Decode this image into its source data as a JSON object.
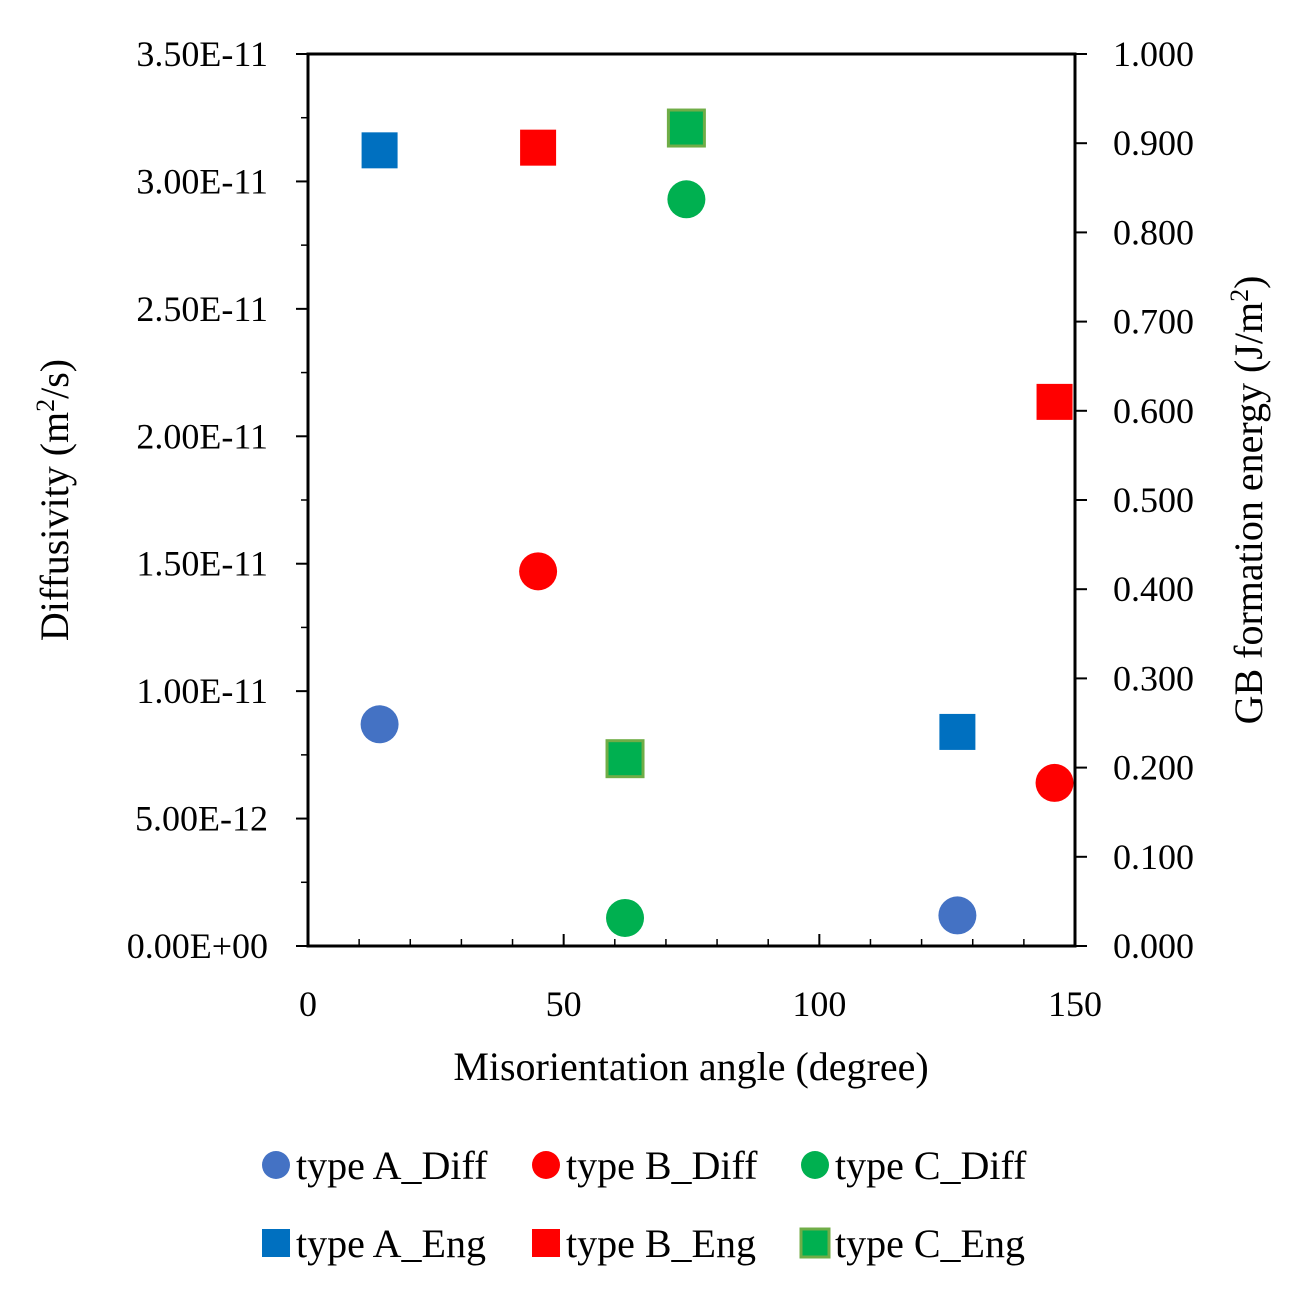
{
  "chart_data": {
    "type": "scatter",
    "xlabel": "Misorientation angle (degree)",
    "ylabel": "Diffusivity (m",
    "ylabel_sup": "2",
    "ylabel_end": "/s)",
    "y2label": "GB formation energy (J/m",
    "y2label_sup": "2",
    "y2label_end": ")",
    "xlim": [
      0,
      150
    ],
    "ylim": [
      0,
      3.5e-11
    ],
    "y2lim": [
      0,
      1.0
    ],
    "x_ticks": [
      "0",
      "50",
      "100",
      "150"
    ],
    "y_ticks": [
      "0.00E+00",
      "5.00E-12",
      "1.00E-11",
      "1.50E-11",
      "2.00E-11",
      "2.50E-11",
      "3.00E-11",
      "3.50E-11"
    ],
    "y2_ticks": [
      "0.000",
      "0.100",
      "0.200",
      "0.300",
      "0.400",
      "0.500",
      "0.600",
      "0.700",
      "0.800",
      "0.900",
      "1.000"
    ],
    "grid": false,
    "legend_position": "bottom",
    "series": [
      {
        "name": "type A_Diff",
        "axis": "left",
        "marker": "circle",
        "color": "#4472C4",
        "points": [
          {
            "x": 14,
            "y": 8.7e-12
          },
          {
            "x": 127,
            "y": 1.2e-12
          }
        ]
      },
      {
        "name": "type B_Diff",
        "axis": "left",
        "marker": "circle",
        "color": "#FF0000",
        "points": [
          {
            "x": 45,
            "y": 1.47e-11
          },
          {
            "x": 146,
            "y": 6.4e-12
          }
        ]
      },
      {
        "name": "type C_Diff",
        "axis": "left",
        "marker": "circle",
        "color": "#00B050",
        "points": [
          {
            "x": 62,
            "y": 1.1e-12
          },
          {
            "x": 74,
            "y": 2.93e-11
          }
        ]
      },
      {
        "name": "type A_Eng",
        "axis": "right",
        "marker": "square",
        "color": "#0070C0",
        "points": [
          {
            "x": 14,
            "y": 0.892
          },
          {
            "x": 127,
            "y": 0.24
          }
        ]
      },
      {
        "name": "type B_Eng",
        "axis": "right",
        "marker": "square",
        "color": "#FF0000",
        "points": [
          {
            "x": 45,
            "y": 0.895
          },
          {
            "x": 146,
            "y": 0.61
          }
        ]
      },
      {
        "name": "type C_Eng",
        "axis": "right",
        "marker": "square",
        "color": "#00B050",
        "border": "#70AD47",
        "points": [
          {
            "x": 62,
            "y": 0.21
          },
          {
            "x": 74,
            "y": 0.917
          }
        ]
      }
    ]
  }
}
